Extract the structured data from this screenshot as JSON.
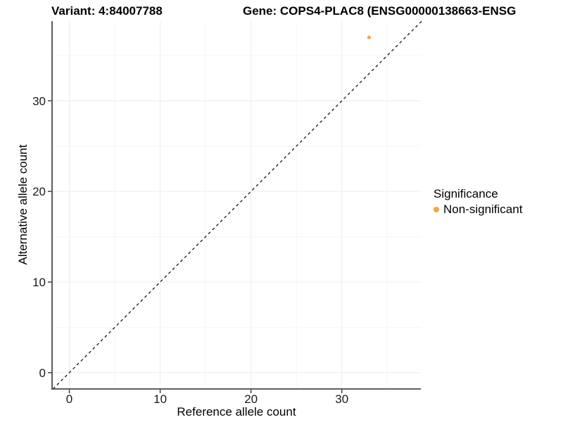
{
  "titles": {
    "variant": "Variant: 4:84007788",
    "gene": "Gene: COPS4-PLAC8 (ENSG00000138663-ENSG"
  },
  "axes": {
    "x_label": "Reference allele count",
    "y_label": "Alternative allele count"
  },
  "legend": {
    "title": "Significance",
    "items": [
      {
        "label": "Non-significant",
        "color": "#FAA43A"
      }
    ]
  },
  "chart_data": {
    "type": "scatter",
    "title": "Variant: 4:84007788   Gene: COPS4-PLAC8 (ENSG00000138663-ENSG",
    "xlabel": "Reference allele count",
    "ylabel": "Alternative allele count",
    "xlim": [
      -1.9,
      38.7
    ],
    "ylim": [
      -1.8,
      38.8
    ],
    "x_major_ticks": [
      0,
      10,
      20,
      30
    ],
    "y_major_ticks": [
      0,
      10,
      20,
      30
    ],
    "x_minor_ticks": [
      5,
      15,
      25,
      35
    ],
    "y_minor_ticks": [
      5,
      15,
      25,
      35
    ],
    "grid": "major+minor",
    "legend_position": "right",
    "series": [
      {
        "name": "Non-significant",
        "color": "#FAA43A",
        "points": [
          {
            "x": 33,
            "y": 37
          }
        ]
      }
    ],
    "reference_line": {
      "kind": "identity",
      "equation": "y = x",
      "style": "dashed",
      "color": "#000000",
      "span": [
        -1.8,
        38.9
      ]
    }
  },
  "style": {
    "background": "#FFFFFF",
    "axis_line_color": "#4A4A4A",
    "tick_color": "#333333",
    "grid_major_color": "#ECECEC",
    "grid_minor_color": "#F5F5F5",
    "text_color": "#1A1A1A",
    "point_color": "#FAA43A"
  }
}
